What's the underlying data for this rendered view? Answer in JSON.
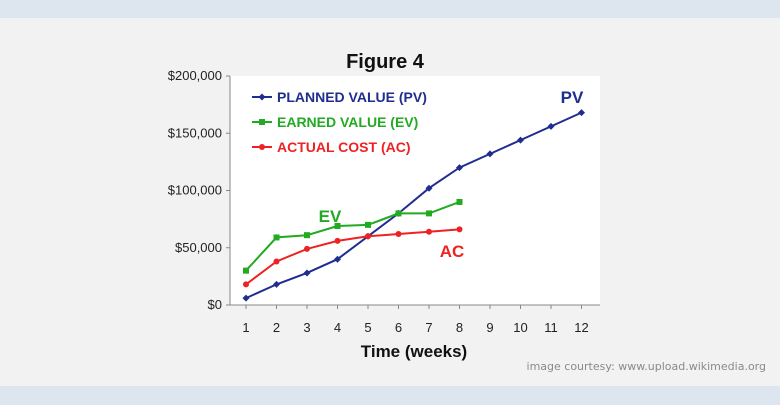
{
  "chart_data": {
    "type": "line",
    "title": "Figure 4",
    "xlabel": "Time (weeks)",
    "ylabel": "",
    "x": [
      1,
      2,
      3,
      4,
      5,
      6,
      7,
      8,
      9,
      10,
      11,
      12
    ],
    "x_ticks": [
      "1",
      "2",
      "3",
      "4",
      "5",
      "6",
      "7",
      "8",
      "9",
      "10",
      "11",
      "12"
    ],
    "ylim": [
      0,
      200000
    ],
    "y_ticks": [
      {
        "value": 0,
        "label": "$0"
      },
      {
        "value": 50000,
        "label": "$50,000"
      },
      {
        "value": 100000,
        "label": "$100,000"
      },
      {
        "value": 150000,
        "label": "$150,000"
      },
      {
        "value": 200000,
        "label": "$200,000"
      }
    ],
    "grid": false,
    "legend_position": "top-left",
    "series": [
      {
        "name": "PLANNED VALUE (PV)",
        "short": "PV",
        "color": "#1f2d8f",
        "marker": "diamond",
        "x": [
          1,
          2,
          3,
          4,
          5,
          6,
          7,
          8,
          9,
          10,
          11,
          12
        ],
        "values": [
          6000,
          18000,
          28000,
          40000,
          60000,
          80000,
          102000,
          120000,
          132000,
          144000,
          156000,
          168000
        ]
      },
      {
        "name": "EARNED VALUE (EV)",
        "short": "EV",
        "color": "#22aa22",
        "marker": "square",
        "x": [
          1,
          2,
          3,
          4,
          5,
          6,
          7,
          8
        ],
        "values": [
          30000,
          59000,
          61000,
          69000,
          70000,
          80000,
          80000,
          90000
        ]
      },
      {
        "name": "ACTUAL COST (AC)",
        "short": "AC",
        "color": "#ee2222",
        "marker": "circle",
        "x": [
          1,
          2,
          3,
          4,
          5,
          6,
          7,
          8
        ],
        "values": [
          18000,
          38000,
          49000,
          56000,
          60000,
          62000,
          64000,
          66000
        ]
      }
    ]
  },
  "credit": "image courtesy: www.upload.wikimedia.org"
}
